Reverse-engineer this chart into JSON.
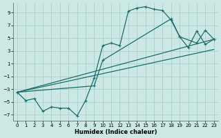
{
  "xlabel": "Humidex (Indice chaleur)",
  "xlim": [
    -0.5,
    23.5
  ],
  "ylim": [
    -8.0,
    10.5
  ],
  "yticks": [
    -7,
    -5,
    -3,
    -1,
    1,
    3,
    5,
    7,
    9
  ],
  "xticks": [
    0,
    1,
    2,
    3,
    4,
    5,
    6,
    7,
    8,
    9,
    10,
    11,
    12,
    13,
    14,
    15,
    16,
    17,
    18,
    19,
    20,
    21,
    22,
    23
  ],
  "bg_color": "#cce8e4",
  "grid_color": "#aacfcb",
  "line_color": "#1a6b6b",
  "curve1_x": [
    0,
    1,
    2,
    3,
    4,
    5,
    6,
    7,
    8,
    9,
    10,
    11,
    12,
    13,
    14,
    15,
    16,
    17,
    18,
    19,
    20,
    21,
    22,
    23
  ],
  "curve1_y": [
    -3.5,
    -4.8,
    -4.5,
    -6.5,
    -5.8,
    -6.0,
    -6.0,
    -7.2,
    -4.8,
    -1.3,
    3.8,
    4.2,
    3.8,
    9.2,
    9.7,
    9.9,
    9.5,
    9.3,
    7.8,
    5.2,
    3.5,
    6.1,
    4.0,
    4.8
  ],
  "curve2_x": [
    0,
    9,
    10,
    18,
    19,
    21,
    22,
    23
  ],
  "curve2_y": [
    -3.5,
    -2.5,
    1.5,
    8.0,
    5.2,
    4.2,
    6.2,
    4.8
  ],
  "line3_x": [
    0,
    23
  ],
  "line3_y": [
    -3.5,
    4.8
  ],
  "line4_x": [
    0,
    23
  ],
  "line4_y": [
    -3.5,
    3.2
  ]
}
